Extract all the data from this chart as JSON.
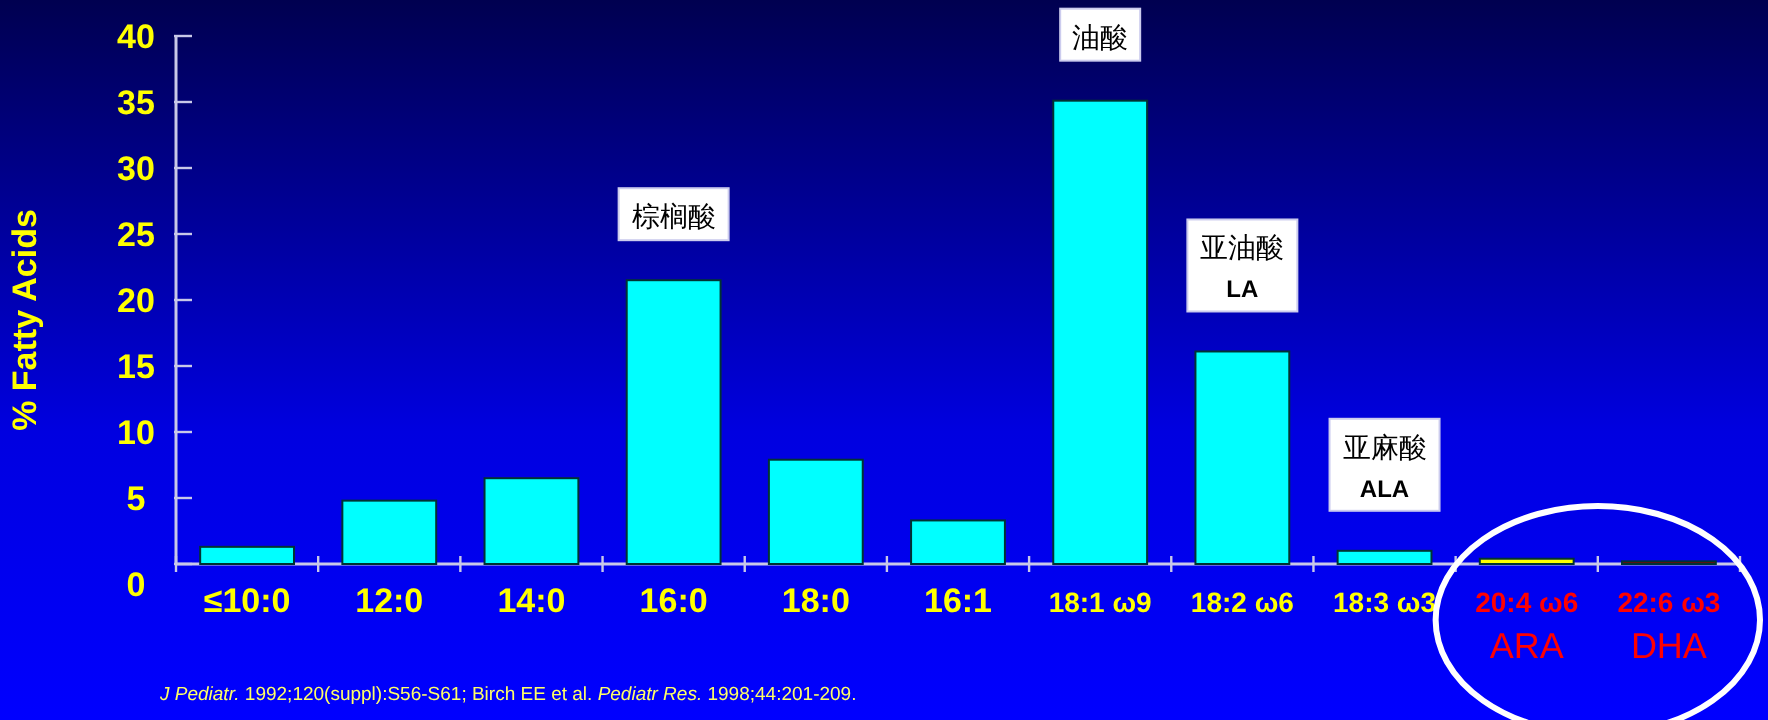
{
  "chart_data": {
    "type": "bar",
    "ylabel": "% Fatty Acids",
    "categories": [
      "≤10:0",
      "12:0",
      "14:0",
      "16:0",
      "18:0",
      "16:1",
      "18:1 ω9",
      "18:2 ω6",
      "18:3 ω3",
      "20:4 ω6",
      "22:6 ω3"
    ],
    "values": [
      1.3,
      4.8,
      6.5,
      21.5,
      7.9,
      3.3,
      35.1,
      16.1,
      1.0,
      0.4,
      0.2
    ],
    "colors": [
      "#00ffff",
      "#00ffff",
      "#00ffff",
      "#00ffff",
      "#00ffff",
      "#00ffff",
      "#00ffff",
      "#00ffff",
      "#00ffff",
      "#ffff00",
      "#8b0000"
    ],
    "ylim": [
      0,
      40
    ],
    "yticks": [
      0,
      5,
      10,
      15,
      20,
      25,
      30,
      35,
      40
    ],
    "grid": false,
    "annotations": [
      {
        "text": "棕榈酸",
        "x": "16:0",
        "y": 21.5
      },
      {
        "text": "油酸",
        "x": "18:1 ω9",
        "y": 35.1
      },
      {
        "text": "亚油酸\nLA",
        "x": "18:2 ω6",
        "y": 16.1
      },
      {
        "text": "亚麻酸\nALA",
        "x": "18:3 ω3",
        "y": 1.0
      },
      "ARA",
      "DHA",
      "*J Pediatr.* 1992;120(suppl):S56-S61; Birch EE et al. *Pediatr Res.* 1998;44:201-209."
    ]
  }
}
